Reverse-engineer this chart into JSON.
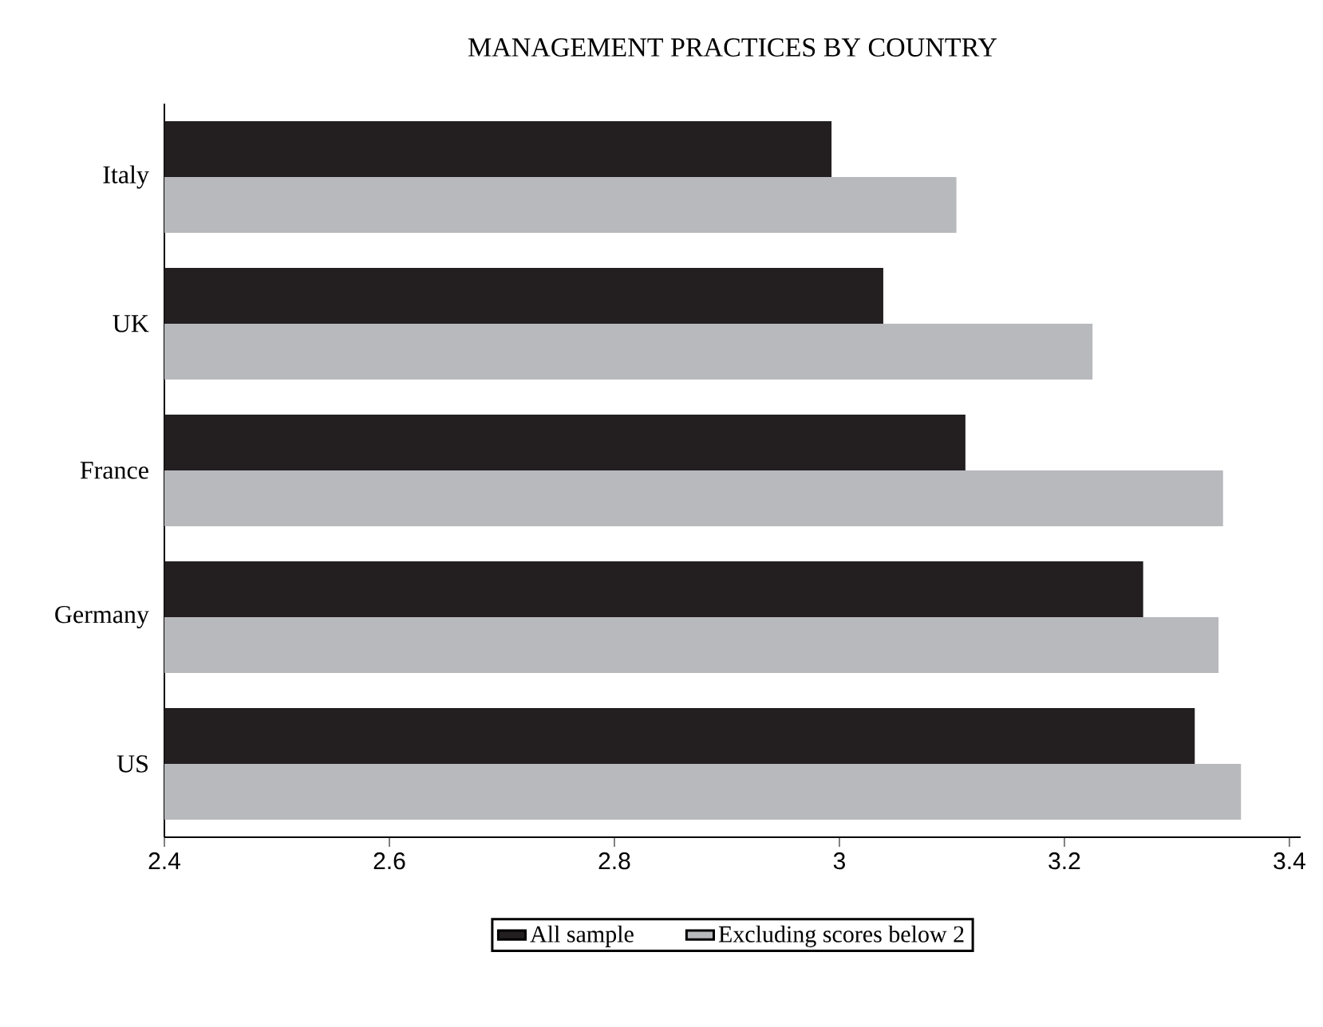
{
  "chart_data": {
    "type": "bar",
    "orientation": "horizontal",
    "title": "MANAGEMENT PRACTICES BY COUNTRY",
    "categories": [
      "Italy",
      "UK",
      "France",
      "Germany",
      "US"
    ],
    "series": [
      {
        "name": "All sample",
        "color": "#231f20",
        "values": [
          2.993,
          3.039,
          3.112,
          3.27,
          3.316
        ]
      },
      {
        "name": "Excluding scores below 2",
        "color": "#b8b9bc",
        "values": [
          3.104,
          3.225,
          3.341,
          3.337,
          3.357
        ]
      }
    ],
    "xlim": [
      2.4,
      3.41
    ],
    "xticks": [
      2.4,
      2.6,
      2.8,
      3,
      3.2,
      3.4
    ],
    "legend": "bottom"
  }
}
